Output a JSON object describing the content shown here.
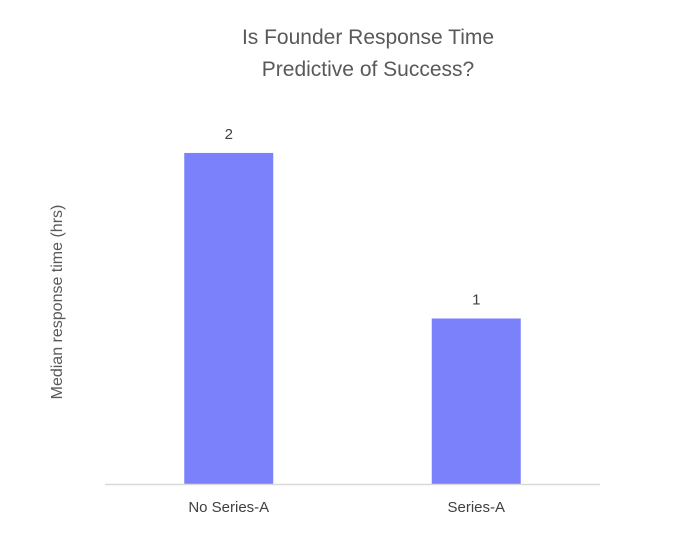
{
  "chart_data": {
    "type": "bar",
    "title_lines": [
      "Is Founder Response Time",
      "Predictive of Success?"
    ],
    "categories": [
      "No Series-A",
      "Series-A"
    ],
    "values": [
      2,
      1
    ],
    "data_labels": [
      "2",
      "1"
    ],
    "xlabel": "",
    "ylabel": "Median response time (hrs)",
    "ylim": [
      0,
      2.35
    ],
    "grid": false,
    "legend": "none",
    "bar_color": "#7B81FB",
    "axis_color": "#D9D9D9"
  }
}
